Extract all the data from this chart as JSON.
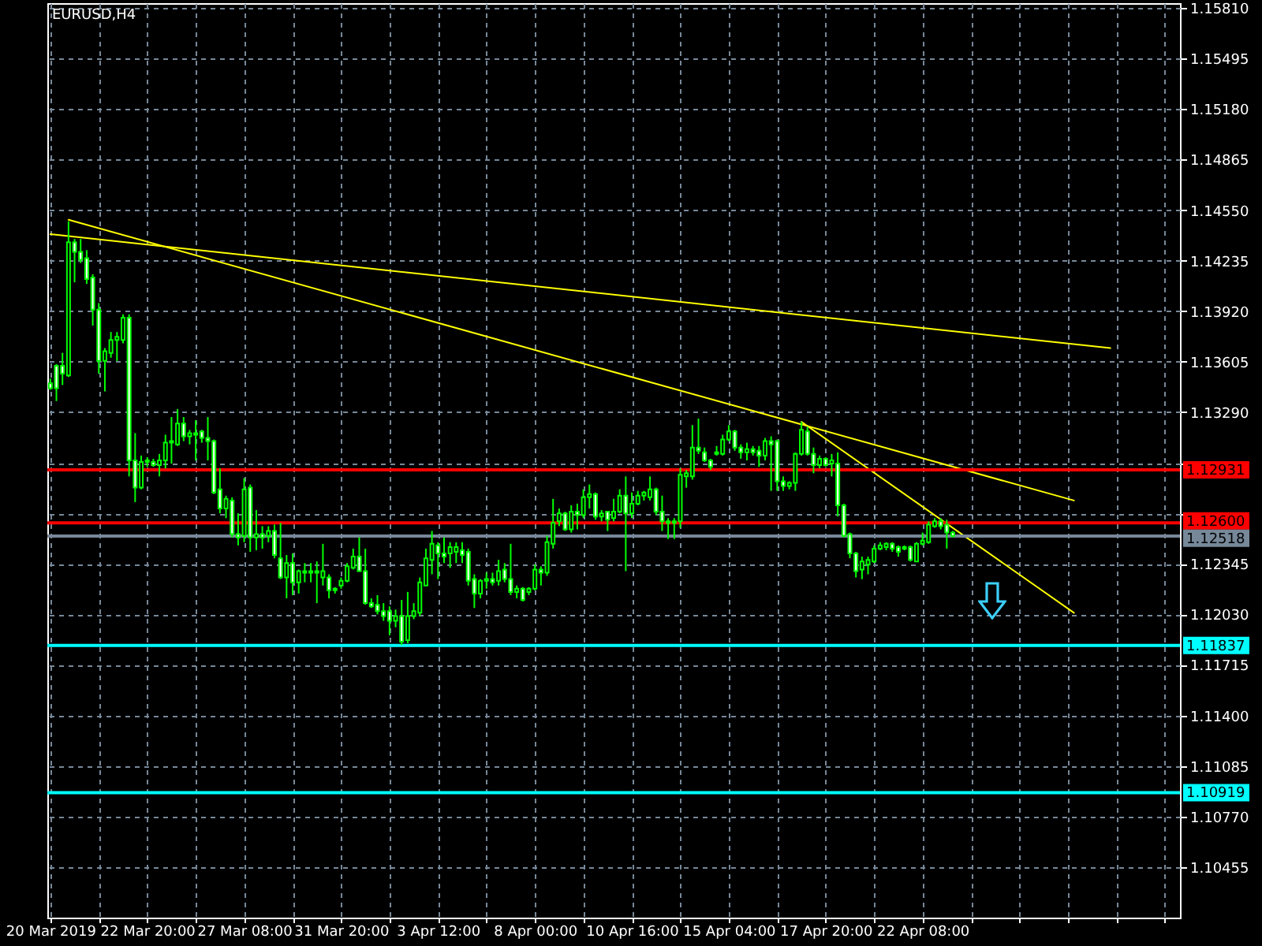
{
  "chart_data": {
    "type": "candlestick",
    "title": "EURUSD,H4",
    "categories": [
      "20 Mar 2019",
      null,
      null,
      null,
      null,
      null,
      null,
      null,
      null,
      null,
      null,
      null,
      null,
      null,
      null,
      null,
      "22 Mar 20:00",
      null,
      null,
      null,
      null,
      null,
      null,
      null,
      null,
      null,
      null,
      null,
      null,
      null,
      null,
      null,
      "27 Mar 08:00",
      null,
      null,
      null,
      null,
      null,
      null,
      null,
      null,
      null,
      null,
      null,
      null,
      null,
      null,
      null,
      "31 Mar 20:00",
      null,
      null,
      null,
      null,
      null,
      null,
      null,
      null,
      null,
      null,
      null,
      null,
      null,
      null,
      null,
      "3 Apr 12:00",
      null,
      null,
      null,
      null,
      null,
      null,
      null,
      null,
      null,
      null,
      null,
      null,
      null,
      null,
      null,
      "8 Apr 00:00",
      null,
      null,
      null,
      null,
      null,
      null,
      null,
      null,
      null,
      null,
      null,
      null,
      null,
      null,
      null,
      "10 Apr 16:00",
      null,
      null,
      null,
      null,
      null,
      null,
      null,
      null,
      null,
      null,
      null,
      null,
      null,
      null,
      null,
      "15 Apr 04:00",
      null,
      null,
      null,
      null,
      null,
      null,
      null,
      null,
      null,
      null,
      null,
      null,
      null,
      null,
      null,
      "17 Apr 20:00",
      null,
      null,
      null,
      null,
      null,
      null,
      null,
      null,
      null,
      null,
      null,
      null,
      null,
      null,
      null,
      "22 Apr 08:00",
      null,
      null,
      null,
      null,
      null,
      null,
      null,
      null,
      null,
      null,
      null,
      null,
      null,
      null,
      null,
      null,
      null,
      null,
      null,
      null,
      null,
      null,
      null,
      null,
      null,
      null,
      null,
      null,
      null,
      null,
      null,
      null,
      null,
      null,
      null,
      null,
      null,
      null,
      null,
      null,
      null,
      null
    ],
    "ohlc": [
      [
        1.1347,
        1.135,
        1.1343,
        1.1344
      ],
      [
        1.1358,
        1.1359,
        1.1336,
        1.1344
      ],
      [
        1.1358,
        1.1366,
        1.1346,
        1.1353
      ],
      [
        1.1352,
        1.1448,
        1.1351,
        1.1435
      ],
      [
        1.1435,
        1.1437,
        1.141,
        1.1429
      ],
      [
        1.1429,
        1.1437,
        1.1422,
        1.1424
      ],
      [
        1.1425,
        1.143,
        1.1409,
        1.1412
      ],
      [
        1.1413,
        1.1415,
        1.1383,
        1.1393
      ],
      [
        1.1393,
        1.1397,
        1.1353,
        1.1361
      ],
      [
        1.1361,
        1.1369,
        1.1342,
        1.1367
      ],
      [
        1.1366,
        1.1379,
        1.1363,
        1.1374
      ],
      [
        1.1374,
        1.1379,
        1.1361,
        1.1376
      ],
      [
        1.1374,
        1.139,
        1.1372,
        1.1388
      ],
      [
        1.1388,
        1.139,
        1.1289,
        1.1299
      ],
      [
        1.1299,
        1.1316,
        1.1273,
        1.1282
      ],
      [
        1.1282,
        1.1302,
        1.1281,
        1.1298
      ],
      [
        1.1298,
        1.1301,
        1.1295,
        1.1299
      ],
      [
        1.1298,
        1.13,
        1.1295,
        1.1296
      ],
      [
        1.1296,
        1.1303,
        1.1289,
        1.1299
      ],
      [
        1.1299,
        1.1315,
        1.1294,
        1.131
      ],
      [
        1.131,
        1.1326,
        1.1297,
        1.1311
      ],
      [
        1.1309,
        1.1331,
        1.1308,
        1.1322
      ],
      [
        1.1322,
        1.1326,
        1.1311,
        1.1314
      ],
      [
        1.1314,
        1.1318,
        1.1309,
        1.1316
      ],
      [
        1.1316,
        1.1324,
        1.1299,
        1.1315
      ],
      [
        1.1317,
        1.1318,
        1.131,
        1.1313
      ],
      [
        1.1313,
        1.1326,
        1.1299,
        1.1311
      ],
      [
        1.1311,
        1.1312,
        1.1278,
        1.1279
      ],
      [
        1.1281,
        1.1294,
        1.1266,
        1.1269
      ],
      [
        1.1269,
        1.1277,
        1.1263,
        1.1275
      ],
      [
        1.1274,
        1.1276,
        1.1251,
        1.1253
      ],
      [
        1.1253,
        1.1266,
        1.1246,
        1.1251
      ],
      [
        1.1252,
        1.1288,
        1.1248,
        1.1281
      ],
      [
        1.1282,
        1.1284,
        1.1242,
        1.1251
      ],
      [
        1.1251,
        1.1268,
        1.1243,
        1.1253
      ],
      [
        1.1253,
        1.1258,
        1.1244,
        1.1251
      ],
      [
        1.1252,
        1.1258,
        1.1248,
        1.1255
      ],
      [
        1.1255,
        1.1259,
        1.1238,
        1.124
      ],
      [
        1.1238,
        1.126,
        1.1225,
        1.1226
      ],
      [
        1.1226,
        1.124,
        1.1213,
        1.1235
      ],
      [
        1.1235,
        1.1241,
        1.1215,
        1.1223
      ],
      [
        1.1223,
        1.1231,
        1.1216,
        1.123
      ],
      [
        1.123,
        1.1235,
        1.1223,
        1.1229
      ],
      [
        1.1229,
        1.1235,
        1.1223,
        1.123
      ],
      [
        1.123,
        1.1236,
        1.121,
        1.1229
      ],
      [
        1.1226,
        1.1247,
        1.1221,
        1.123
      ],
      [
        1.1226,
        1.1228,
        1.1213,
        1.1218
      ],
      [
        1.1218,
        1.122,
        1.1216,
        1.1219
      ],
      [
        1.1221,
        1.1226,
        1.1219,
        1.1224
      ],
      [
        1.1224,
        1.1235,
        1.1223,
        1.1233
      ],
      [
        1.1232,
        1.1244,
        1.1231,
        1.1239
      ],
      [
        1.1239,
        1.1251,
        1.123,
        1.123
      ],
      [
        1.123,
        1.1244,
        1.1209,
        1.121
      ],
      [
        1.121,
        1.1213,
        1.1207,
        1.1208
      ],
      [
        1.1209,
        1.1215,
        1.1203,
        1.1205
      ],
      [
        1.1205,
        1.121,
        1.1199,
        1.1202
      ],
      [
        1.1205,
        1.1208,
        1.119,
        1.1199
      ],
      [
        1.1199,
        1.1206,
        1.1195,
        1.1202
      ],
      [
        1.1202,
        1.1212,
        1.1184,
        1.1186
      ],
      [
        1.1187,
        1.1217,
        1.1185,
        1.1202
      ],
      [
        1.1202,
        1.121,
        1.12,
        1.1205
      ],
      [
        1.1204,
        1.1226,
        1.1202,
        1.1223
      ],
      [
        1.1221,
        1.1244,
        1.1221,
        1.1238
      ],
      [
        1.1237,
        1.1255,
        1.1228,
        1.1247
      ],
      [
        1.1246,
        1.1248,
        1.1225,
        1.1241
      ],
      [
        1.1241,
        1.1251,
        1.1235,
        1.1239
      ],
      [
        1.1241,
        1.1248,
        1.1232,
        1.1245
      ],
      [
        1.1242,
        1.1248,
        1.1235,
        1.1245
      ],
      [
        1.1243,
        1.1248,
        1.1235,
        1.124
      ],
      [
        1.1242,
        1.1244,
        1.1221,
        1.1224
      ],
      [
        1.1225,
        1.1228,
        1.1207,
        1.1216
      ],
      [
        1.1216,
        1.1225,
        1.1213,
        1.1224
      ],
      [
        1.1224,
        1.1229,
        1.1219,
        1.1225
      ],
      [
        1.1225,
        1.1229,
        1.1221,
        1.1223
      ],
      [
        1.1224,
        1.1237,
        1.1221,
        1.123
      ],
      [
        1.1231,
        1.1235,
        1.1223,
        1.1225
      ],
      [
        1.1225,
        1.1247,
        1.1215,
        1.1217
      ],
      [
        1.1217,
        1.1221,
        1.1213,
        1.1219
      ],
      [
        1.1219,
        1.122,
        1.1211,
        1.1212
      ],
      [
        1.1217,
        1.122,
        1.1215,
        1.1219
      ],
      [
        1.1219,
        1.1234,
        1.1218,
        1.1231
      ],
      [
        1.1231,
        1.1233,
        1.1221,
        1.1229
      ],
      [
        1.1229,
        1.1252,
        1.1227,
        1.1248
      ],
      [
        1.1247,
        1.1275,
        1.1244,
        1.126
      ],
      [
        1.1261,
        1.1269,
        1.1258,
        1.1266
      ],
      [
        1.1266,
        1.1267,
        1.1255,
        1.1256
      ],
      [
        1.1256,
        1.1271,
        1.1254,
        1.1267
      ],
      [
        1.1267,
        1.1272,
        1.1256,
        1.1265
      ],
      [
        1.1265,
        1.1281,
        1.1263,
        1.1276
      ],
      [
        1.1276,
        1.1284,
        1.1269,
        1.1278
      ],
      [
        1.1278,
        1.1279,
        1.1262,
        1.1264
      ],
      [
        1.1264,
        1.1268,
        1.1261,
        1.1266
      ],
      [
        1.1267,
        1.1267,
        1.1255,
        1.1262
      ],
      [
        1.1263,
        1.1275,
        1.1261,
        1.1267
      ],
      [
        1.1267,
        1.1281,
        1.1266,
        1.1277
      ],
      [
        1.1277,
        1.1289,
        1.123,
        1.1266
      ],
      [
        1.1266,
        1.1279,
        1.1263,
        1.1272
      ],
      [
        1.1272,
        1.128,
        1.1271,
        1.1277
      ],
      [
        1.1277,
        1.128,
        1.1274,
        1.1279
      ],
      [
        1.1276,
        1.1289,
        1.1274,
        1.1281
      ],
      [
        1.1281,
        1.1282,
        1.1265,
        1.1267
      ],
      [
        1.1267,
        1.1277,
        1.1255,
        1.1261
      ],
      [
        1.1261,
        1.1263,
        1.125,
        1.126
      ],
      [
        1.126,
        1.1263,
        1.125,
        1.1261
      ],
      [
        1.1261,
        1.1294,
        1.1257,
        1.129
      ],
      [
        1.1289,
        1.1293,
        1.1282,
        1.1291
      ],
      [
        1.1289,
        1.1321,
        1.1287,
        1.1307
      ],
      [
        1.1307,
        1.1325,
        1.1303,
        1.1305
      ],
      [
        1.1304,
        1.1307,
        1.1298,
        1.1299
      ],
      [
        1.1299,
        1.13,
        1.1293,
        1.1295
      ],
      [
        1.1303,
        1.1308,
        1.1302,
        1.1304
      ],
      [
        1.1303,
        1.1315,
        1.1302,
        1.1312
      ],
      [
        1.1312,
        1.1321,
        1.1311,
        1.1317
      ],
      [
        1.1317,
        1.1318,
        1.1305,
        1.1307
      ],
      [
        1.1307,
        1.1309,
        1.13,
        1.1304
      ],
      [
        1.1304,
        1.131,
        1.1299,
        1.1306
      ],
      [
        1.1306,
        1.1308,
        1.1302,
        1.1304
      ],
      [
        1.1305,
        1.1308,
        1.1295,
        1.1302
      ],
      [
        1.1302,
        1.1313,
        1.1299,
        1.1311
      ],
      [
        1.1311,
        1.1314,
        1.128,
        1.1309
      ],
      [
        1.1311,
        1.1312,
        1.128,
        1.1286
      ],
      [
        1.1286,
        1.1289,
        1.128,
        1.1283
      ],
      [
        1.1283,
        1.1286,
        1.1281,
        1.1285
      ],
      [
        1.1285,
        1.1304,
        1.128,
        1.1303
      ],
      [
        1.1303,
        1.1323,
        1.1302,
        1.1318
      ],
      [
        1.1317,
        1.132,
        1.1302,
        1.1303
      ],
      [
        1.1303,
        1.1307,
        1.1291,
        1.1296
      ],
      [
        1.1296,
        1.1302,
        1.1294,
        1.13
      ],
      [
        1.13,
        1.1301,
        1.1295,
        1.1296
      ],
      [
        1.1297,
        1.1303,
        1.1289,
        1.1299
      ],
      [
        1.1297,
        1.1304,
        1.1264,
        1.1271
      ],
      [
        1.1271,
        1.1272,
        1.1251,
        1.1252
      ],
      [
        1.1253,
        1.1254,
        1.1238,
        1.1241
      ],
      [
        1.1241,
        1.1242,
        1.1226,
        1.123
      ],
      [
        1.1231,
        1.1239,
        1.1225,
        1.1236
      ],
      [
        1.1234,
        1.1239,
        1.1228,
        1.1237
      ],
      [
        1.1236,
        1.1246,
        1.1235,
        1.1244
      ],
      [
        1.1244,
        1.1248,
        1.1243,
        1.1246
      ],
      [
        1.1245,
        1.1248,
        1.1243,
        1.1247
      ],
      [
        1.1247,
        1.1248,
        1.1242,
        1.1244
      ],
      [
        1.1245,
        1.1246,
        1.1239,
        1.1242
      ],
      [
        1.1244,
        1.1246,
        1.1243,
        1.1245
      ],
      [
        1.1245,
        1.1246,
        1.1236,
        1.1237
      ],
      [
        1.1236,
        1.1248,
        1.1236,
        1.1247
      ],
      [
        1.1247,
        1.1254,
        1.1246,
        1.1249
      ],
      [
        1.1248,
        1.1261,
        1.1247,
        1.1259
      ],
      [
        1.1258,
        1.1263,
        1.1257,
        1.1261
      ],
      [
        1.1261,
        1.1263,
        1.1256,
        1.1258
      ],
      [
        1.1259,
        1.1262,
        1.1244,
        1.1254
      ],
      [
        1.1254,
        1.1255,
        1.1251,
        1.1252
      ],
      null,
      null,
      null,
      null,
      null,
      null,
      null,
      null,
      null,
      null,
      null,
      null,
      null,
      null,
      null,
      null,
      null,
      null,
      null,
      null,
      null,
      null,
      null,
      null,
      null,
      null,
      null,
      null,
      null,
      null,
      null,
      null,
      null,
      null,
      null,
      null,
      null
    ],
    "color": "#00ff00",
    "colors": [
      "#ffffff",
      "#ffffff",
      "#ffffff",
      "#000000",
      "#ffffff",
      "#ffffff",
      "#ffffff",
      "#ffffff",
      "#ffffff",
      "#000000",
      "#000000",
      "#000000",
      "#000000",
      "#ffffff",
      "#ffffff",
      "#000000",
      "#000000",
      "#ffffff",
      "#000000",
      "#000000",
      "#000000",
      "#000000",
      "#ffffff",
      "#000000",
      "#ffffff",
      "#ffffff",
      "#ffffff",
      "#ffffff",
      "#ffffff",
      "#000000",
      "#ffffff",
      "#ffffff",
      "#000000",
      "#ffffff",
      "#000000",
      "#ffffff",
      "#000000",
      "#ffffff",
      "#ffffff",
      "#000000",
      "#ffffff",
      "#000000",
      "#ffffff",
      "#000000",
      "#ffffff",
      "#000000",
      "#ffffff",
      "#000000",
      "#000000",
      "#000000",
      "#000000",
      "#ffffff",
      "#ffffff",
      "#ffffff",
      "#ffffff",
      "#ffffff",
      "#ffffff",
      "#000000",
      "#ffffff",
      "#000000",
      "#000000",
      "#000000",
      "#000000",
      "#000000",
      "#ffffff",
      "#ffffff",
      "#000000",
      "#000000",
      "#ffffff",
      "#ffffff",
      "#ffffff",
      "#000000",
      "#000000",
      "#ffffff",
      "#000000",
      "#ffffff",
      "#ffffff",
      "#000000",
      "#ffffff",
      "#000000",
      "#000000",
      "#ffffff",
      "#000000",
      "#000000",
      "#000000",
      "#ffffff",
      "#000000",
      "#ffffff",
      "#000000",
      "#000000",
      "#ffffff",
      "#000000",
      "#ffffff",
      "#000000",
      "#000000",
      "#ffffff",
      "#000000",
      "#000000",
      "#000000",
      "#000000",
      "#ffffff",
      "#ffffff",
      "#ffffff",
      "#000000",
      "#000000",
      "#000000",
      "#000000",
      "#ffffff",
      "#ffffff",
      "#ffffff",
      "#000000",
      "#000000",
      "#000000",
      "#ffffff",
      "#ffffff",
      "#000000",
      "#ffffff",
      "#ffffff",
      "#000000",
      "#ffffff",
      "#ffffff",
      "#ffffff",
      "#000000",
      "#000000",
      "#000000",
      "#ffffff",
      "#ffffff",
      "#000000",
      "#ffffff",
      "#000000",
      "#ffffff",
      "#ffffff",
      "#ffffff",
      "#ffffff",
      "#000000",
      "#000000",
      "#000000",
      "#000000",
      "#000000",
      "#ffffff",
      "#ffffff",
      "#000000",
      "#ffffff",
      "#000000",
      "#000000",
      "#000000",
      "#000000",
      "#ffffff",
      "#ffffff",
      "#ffffff",
      null,
      null,
      null,
      null,
      null,
      null,
      null,
      null,
      null,
      null,
      null,
      null,
      null,
      null,
      null,
      null,
      null,
      null,
      null,
      null,
      null,
      null,
      null,
      null,
      null,
      null,
      null,
      null,
      null,
      null,
      null,
      null,
      null,
      null,
      null,
      null,
      null
    ],
    "series": [
      {
        "type": "line",
        "color": "#ffff00",
        "values": [
          1.144,
          null,
          null,
          null,
          null,
          null,
          null,
          null,
          null,
          null,
          null,
          null,
          null,
          null,
          null,
          null,
          null,
          null,
          null,
          null,
          null,
          null,
          null,
          null,
          null,
          null,
          null,
          null,
          null,
          null,
          null,
          null,
          null,
          null,
          null,
          null,
          null,
          null,
          null,
          null,
          null,
          null,
          null,
          null,
          null,
          null,
          null,
          null,
          null,
          null,
          null,
          null,
          null,
          null,
          null,
          null,
          null,
          null,
          null,
          null,
          null,
          null,
          null,
          null,
          null,
          null,
          null,
          null,
          null,
          null,
          null,
          null,
          null,
          null,
          null,
          null,
          null,
          null,
          null,
          null,
          null,
          null,
          null,
          null,
          null,
          null,
          null,
          null,
          null,
          null,
          null,
          null,
          null,
          null,
          null,
          null,
          null,
          null,
          null,
          null,
          null,
          null,
          null,
          null,
          null,
          null,
          null,
          null,
          null,
          null,
          null,
          null,
          null,
          null,
          null,
          null,
          null,
          null,
          null,
          null,
          null,
          null,
          null,
          null,
          null,
          null,
          null,
          null,
          null,
          null,
          null,
          null,
          null,
          null,
          null,
          null,
          null,
          null,
          null,
          null,
          null,
          null,
          null,
          null,
          null,
          null,
          null,
          null,
          null,
          null,
          null,
          null,
          null,
          null,
          null,
          null,
          null,
          null,
          null,
          null,
          null,
          null,
          null,
          null,
          null,
          null,
          null,
          null,
          null,
          null,
          null,
          null,
          null,
          null,
          null,
          1.1369,
          null,
          null,
          null,
          null,
          null,
          null,
          null,
          null,
          null,
          null,
          null
        ]
      },
      {
        "type": "line",
        "color": "#ffff00",
        "values": [
          null,
          null,
          null,
          1.1449,
          null,
          null,
          null,
          null,
          null,
          null,
          null,
          null,
          null,
          null,
          null,
          null,
          null,
          null,
          null,
          null,
          null,
          null,
          null,
          null,
          null,
          null,
          null,
          null,
          null,
          null,
          null,
          null,
          null,
          null,
          null,
          null,
          null,
          null,
          null,
          null,
          null,
          null,
          null,
          null,
          null,
          null,
          null,
          null,
          null,
          null,
          null,
          null,
          null,
          null,
          null,
          null,
          null,
          null,
          null,
          null,
          null,
          null,
          null,
          null,
          null,
          null,
          null,
          null,
          null,
          null,
          null,
          null,
          null,
          null,
          null,
          null,
          null,
          null,
          null,
          null,
          null,
          null,
          null,
          null,
          null,
          null,
          null,
          null,
          null,
          null,
          null,
          null,
          null,
          null,
          null,
          null,
          null,
          null,
          null,
          null,
          null,
          null,
          null,
          null,
          null,
          null,
          null,
          null,
          null,
          null,
          null,
          null,
          null,
          null,
          null,
          null,
          null,
          null,
          null,
          null,
          null,
          null,
          null,
          null,
          null,
          null,
          null,
          null,
          null,
          null,
          null,
          null,
          null,
          null,
          null,
          null,
          null,
          null,
          null,
          null,
          null,
          null,
          null,
          null,
          null,
          null,
          null,
          null,
          null,
          null,
          null,
          null,
          null,
          null,
          null,
          null,
          null,
          null,
          null,
          null,
          null,
          null,
          null,
          null,
          null,
          null,
          null,
          null,
          null,
          1.1274,
          null,
          null,
          null,
          null,
          null,
          null,
          null,
          null,
          null,
          null,
          null,
          null,
          null,
          null,
          null,
          null,
          null
        ]
      },
      {
        "type": "line",
        "color": "#ffff00",
        "values": [
          null,
          null,
          null,
          null,
          null,
          null,
          null,
          null,
          null,
          null,
          null,
          null,
          null,
          null,
          null,
          null,
          null,
          null,
          null,
          null,
          null,
          null,
          null,
          null,
          null,
          null,
          null,
          null,
          null,
          null,
          null,
          null,
          null,
          null,
          null,
          null,
          null,
          null,
          null,
          null,
          null,
          null,
          null,
          null,
          null,
          null,
          null,
          null,
          null,
          null,
          null,
          null,
          null,
          null,
          null,
          null,
          null,
          null,
          null,
          null,
          null,
          null,
          null,
          null,
          null,
          null,
          null,
          null,
          null,
          null,
          null,
          null,
          null,
          null,
          null,
          null,
          null,
          null,
          null,
          null,
          null,
          null,
          null,
          null,
          null,
          null,
          null,
          null,
          null,
          null,
          null,
          null,
          null,
          null,
          null,
          null,
          null,
          null,
          null,
          null,
          null,
          null,
          null,
          null,
          null,
          null,
          null,
          null,
          null,
          null,
          null,
          null,
          null,
          null,
          null,
          null,
          null,
          null,
          null,
          null,
          null,
          null,
          null,
          null,
          1.1323,
          null,
          null,
          null,
          null,
          null,
          null,
          null,
          null,
          null,
          null,
          null,
          null,
          null,
          null,
          null,
          null,
          null,
          null,
          null,
          null,
          null,
          null,
          null,
          null,
          null,
          null,
          null,
          null,
          null,
          null,
          null,
          null,
          null,
          null,
          null,
          null,
          null,
          null,
          null,
          null,
          null,
          null,
          null,
          null,
          1.1204,
          null,
          null,
          null,
          null,
          null,
          null,
          null,
          null,
          null,
          null,
          null,
          null,
          null,
          null,
          null,
          null,
          null
        ]
      }
    ],
    "ref_lines": [
      {
        "axis": "y",
        "value": 1.12931,
        "label": "1.12931",
        "color": "#ff0000"
      },
      {
        "axis": "y",
        "value": 1.126,
        "label": "1.12600",
        "color": "#ff0000"
      },
      {
        "axis": "y",
        "value": 1.12518,
        "label": "1.12518",
        "color": "#778899"
      },
      {
        "axis": "y",
        "value": 1.11837,
        "label": "1.11837",
        "color": "#00ffff"
      },
      {
        "axis": "y",
        "value": 1.10919,
        "label": "1.10919",
        "color": "#00ffff"
      }
    ],
    "ylim": [
      1.1014,
      1.1584
    ],
    "yticks": [
      {
        "value": 1.1581,
        "label": "1.15810"
      },
      {
        "value": 1.15495,
        "label": "1.15495"
      },
      {
        "value": 1.1518,
        "label": "1.15180"
      },
      {
        "value": 1.14865,
        "label": "1.14865"
      },
      {
        "value": 1.1455,
        "label": "1.14550"
      },
      {
        "value": 1.14235,
        "label": "1.14235"
      },
      {
        "value": 1.1392,
        "label": "1.13920"
      },
      {
        "value": 1.13605,
        "label": "1.13605"
      },
      {
        "value": 1.1329,
        "label": "1.13290"
      },
      {
        "value": 1.12975,
        "label": null
      },
      {
        "value": 1.1266,
        "label": null
      },
      {
        "value": 1.12345,
        "label": "1.12345"
      },
      {
        "value": 1.1203,
        "label": "1.12030"
      },
      {
        "value": 1.11715,
        "label": "1.11715"
      },
      {
        "value": 1.114,
        "label": "1.11400"
      },
      {
        "value": 1.11085,
        "label": "1.11085"
      },
      {
        "value": 1.1077,
        "label": "1.10770"
      },
      {
        "value": 1.10455,
        "label": "1.10455"
      }
    ],
    "grid": true
  }
}
